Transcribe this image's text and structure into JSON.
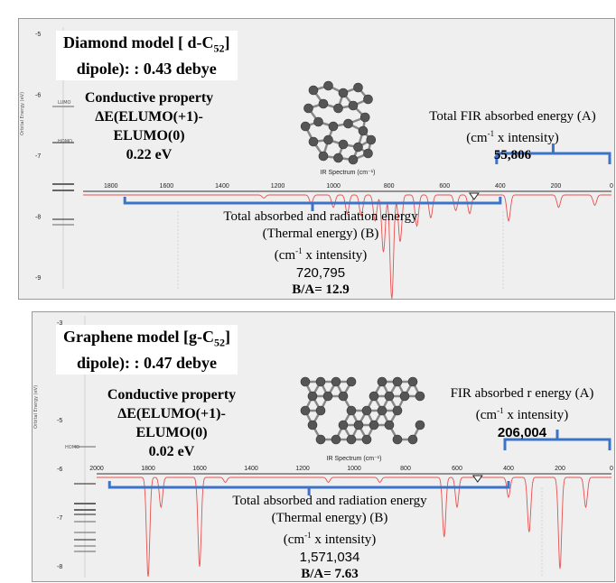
{
  "panels": {
    "top": {
      "title_a": "Diamond model [ d-C",
      "title_sub": "52",
      "title_end": "]",
      "dipole": "dipole): : 0.43 debye",
      "cond_l1": "Conductive property",
      "cond_l2": "ΔE(ELUMO(+1)-",
      "cond_l3": "ELUMO(0)",
      "cond_l4": "0.22 eV",
      "fir_l1": "Total FIR absorbed energy (A)",
      "fir_l2": "(cm",
      "fir_sup": "-1",
      "fir_l2b": " x intensity)",
      "fir_value": "55,806",
      "tot_l1": "Total absorbed and radiation energy",
      "tot_l2": "(Thermal energy) (B)",
      "tot_l3": "(cm",
      "tot_sup": "-1",
      "tot_l3b": " x intensity)",
      "tot_value": "720,795",
      "ratio": "B/A= 12.9",
      "sidebar_axis": "Orbital Energy (eV)",
      "sidebar_lumo": "LUMO",
      "sidebar_homo": "HOMO",
      "sidebar_ticks": [
        "-5",
        "-6",
        "-7",
        "-8",
        "-9"
      ]
    },
    "bottom": {
      "title_a": "Graphene model [g-C",
      "title_sub": "52",
      "title_end": "]",
      "dipole": "dipole): : 0.47 debye",
      "cond_l1": "Conductive property",
      "cond_l2": "ΔE(ELUMO(+1)-",
      "cond_l3": "ELUMO(0)",
      "cond_l4": "0.02 eV",
      "fir_l1": "FIR absorbed r energy (A)",
      "fir_l2": "(cm",
      "fir_sup": "-1",
      "fir_l2b": " x intensity)",
      "fir_value": "206,004",
      "tot_l1": "Total absorbed and radiation energy",
      "tot_l2": "(Thermal energy) (B)",
      "tot_l3": "(cm",
      "tot_sup": "-1",
      "tot_l3b": " x intensity)",
      "tot_value": "1,571,034",
      "ratio": "B/A= 7.63",
      "sidebar_axis": "Orbital Energy (eV)",
      "sidebar_homo": "HOMO",
      "sidebar_ticks": [
        "-3",
        "-4",
        "-5",
        "-6",
        "-7",
        "-8"
      ]
    }
  },
  "chart_data": [
    {
      "type": "line",
      "title": "IR Spectrum (cm⁻¹)",
      "xlabel": "IR Spectrum (cm⁻¹)",
      "x_reversed": true,
      "xlim": [
        1900,
        0
      ],
      "xticks": [
        "1800",
        "1600",
        "1400",
        "1200",
        "1000",
        "800",
        "600",
        "400",
        "200",
        "0"
      ],
      "series_color": "#e8504f",
      "peaks": [
        {
          "x": 1250,
          "depth": 0.03
        },
        {
          "x": 1080,
          "depth": 0.08
        },
        {
          "x": 1000,
          "depth": 0.12
        },
        {
          "x": 950,
          "depth": 0.18
        },
        {
          "x": 900,
          "depth": 0.2
        },
        {
          "x": 850,
          "depth": 0.25
        },
        {
          "x": 820,
          "depth": 0.55
        },
        {
          "x": 790,
          "depth": 1.0
        },
        {
          "x": 760,
          "depth": 0.45
        },
        {
          "x": 700,
          "depth": 0.3
        },
        {
          "x": 650,
          "depth": 0.22
        },
        {
          "x": 560,
          "depth": 0.15
        },
        {
          "x": 510,
          "depth": 0.18
        },
        {
          "x": 370,
          "depth": 0.25
        },
        {
          "x": 190,
          "depth": 0.12
        },
        {
          "x": 60,
          "depth": 0.1
        }
      ],
      "fir_range": [
        400,
        0
      ],
      "total_range": [
        1750,
        400
      ]
    },
    {
      "type": "line",
      "title": "IR Spectrum (cm⁻¹)",
      "xlabel": "IR Spectrum (cm⁻¹)",
      "x_reversed": true,
      "xlim": [
        2000,
        0
      ],
      "xticks": [
        "2000",
        "1800",
        "1600",
        "1400",
        "1200",
        "1000",
        "800",
        "600",
        "400",
        "200",
        "0"
      ],
      "series_color": "#e8504f",
      "peaks": [
        {
          "x": 1800,
          "depth": 1.0
        },
        {
          "x": 1750,
          "depth": 0.3
        },
        {
          "x": 1600,
          "depth": 0.9
        },
        {
          "x": 1500,
          "depth": 0.05
        },
        {
          "x": 1100,
          "depth": 0.05
        },
        {
          "x": 900,
          "depth": 0.05
        },
        {
          "x": 650,
          "depth": 0.6
        },
        {
          "x": 600,
          "depth": 0.3
        },
        {
          "x": 400,
          "depth": 0.2
        },
        {
          "x": 320,
          "depth": 0.55
        },
        {
          "x": 200,
          "depth": 0.92
        },
        {
          "x": 100,
          "depth": 0.3
        }
      ],
      "fir_range": [
        400,
        0
      ],
      "total_range": [
        1950,
        400
      ]
    }
  ]
}
